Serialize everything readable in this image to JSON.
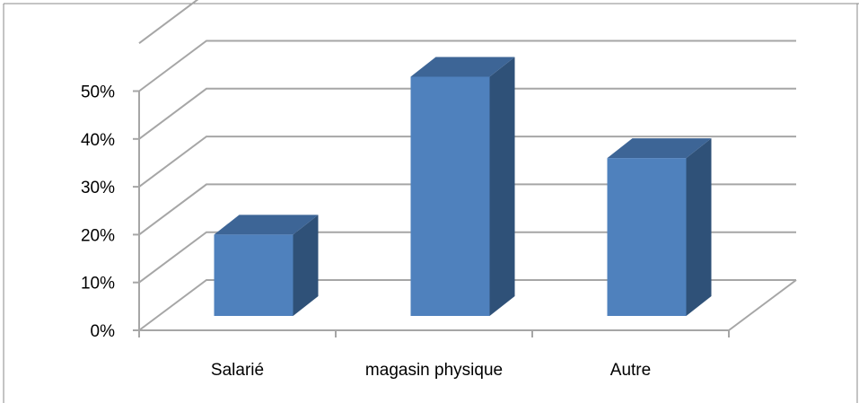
{
  "chart_data": {
    "type": "bar",
    "categories": [
      "Salarié",
      "magasin physique",
      "Autre"
    ],
    "values": [
      17,
      50,
      33
    ],
    "value_unit": "%",
    "ylim": [
      0,
      50
    ],
    "yticks": [
      "0%",
      "10%",
      "20%",
      "30%",
      "40%",
      "50%"
    ],
    "grid": true,
    "legend": "none",
    "style": "3d-column",
    "colors": {
      "bar_front": "#4f81bd",
      "bar_side": "#2f5178",
      "bar_top": "#3d6596",
      "gridline": "#a6a6a6"
    }
  }
}
